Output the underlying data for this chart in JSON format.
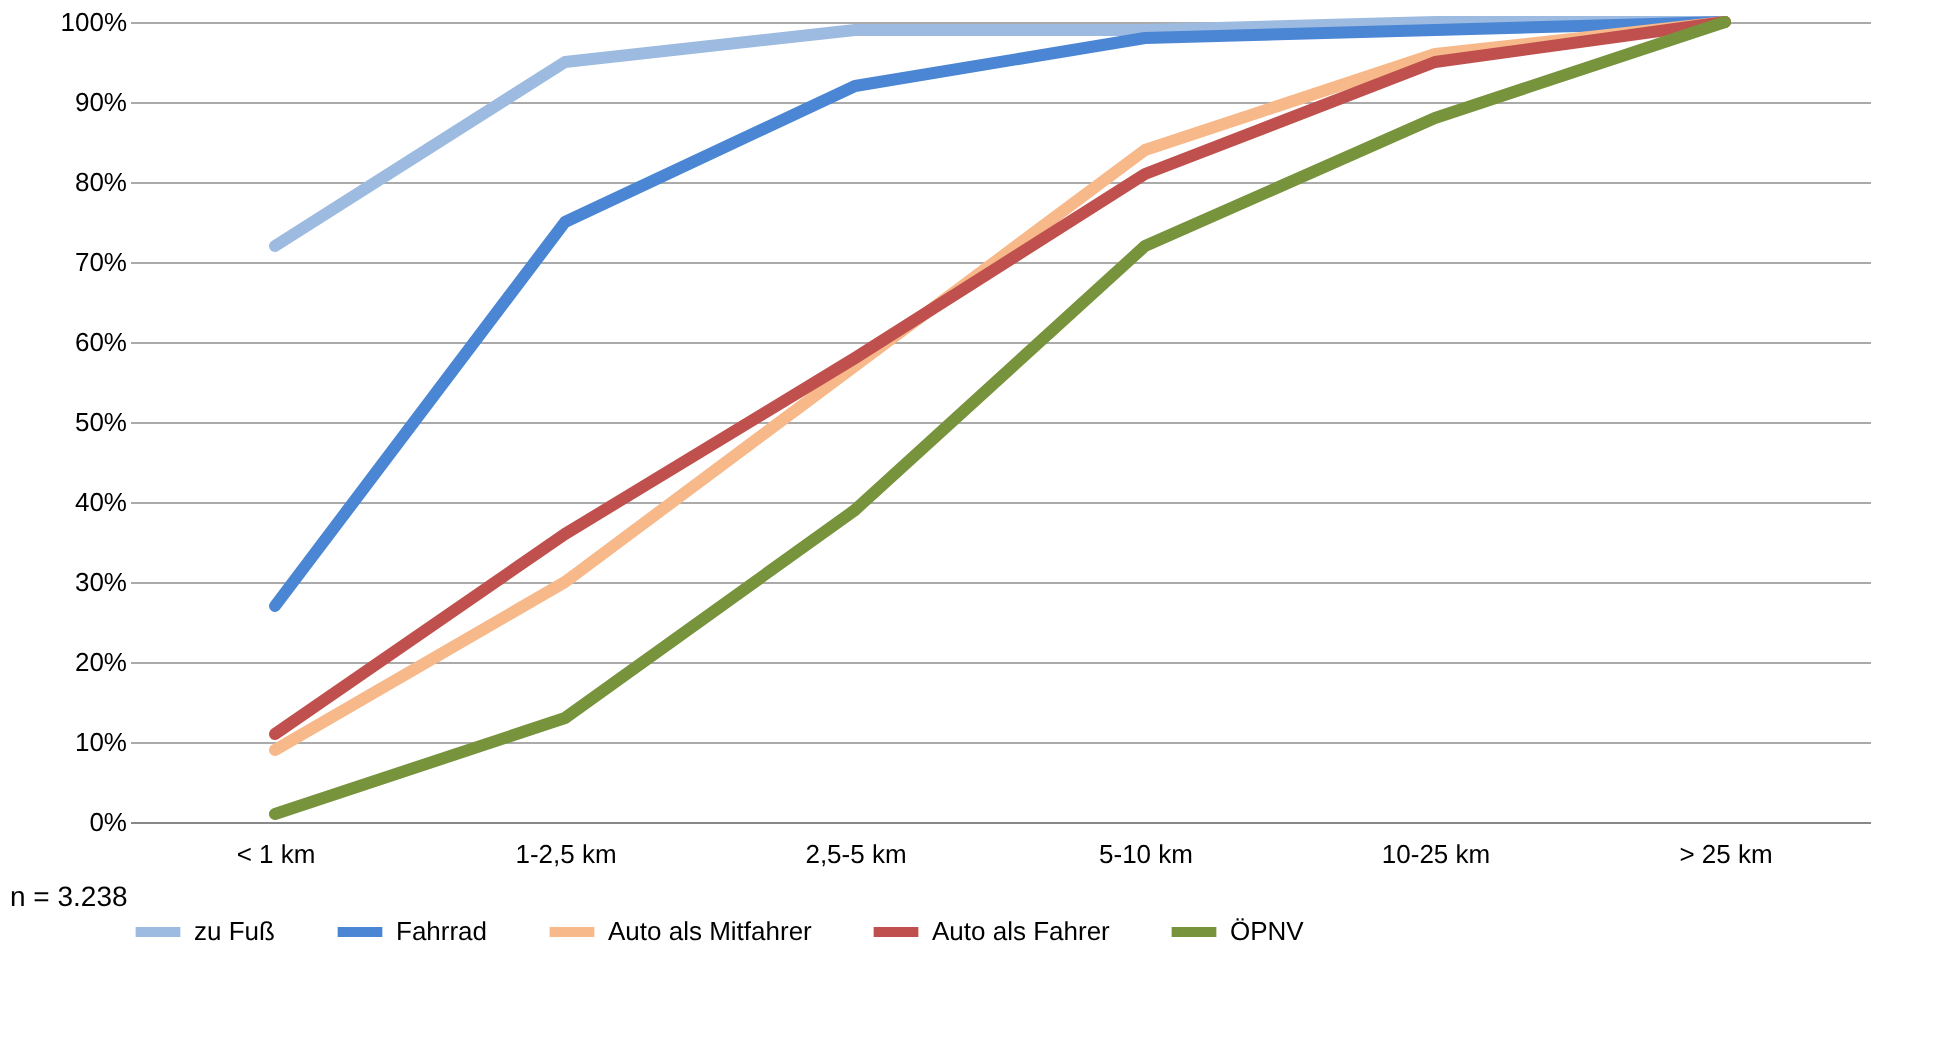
{
  "chart_data": {
    "type": "line",
    "categories": [
      "< 1 km",
      "1-2,5 km",
      "2,5-5 km",
      "5-10 km",
      "10-25 km",
      "> 25 km"
    ],
    "series": [
      {
        "name": "zu Fuß",
        "color": "#9dbbe0",
        "values": [
          72,
          95,
          99,
          99,
          100,
          100
        ]
      },
      {
        "name": "Fahrrad",
        "color": "#4a86d4",
        "values": [
          27,
          75,
          92,
          98,
          99,
          100
        ]
      },
      {
        "name": "Auto als Mitfahrer",
        "color": "#f7b98a",
        "values": [
          9,
          30,
          57,
          84,
          96,
          100
        ]
      },
      {
        "name": "Auto als Fahrer",
        "color": "#c0504d",
        "values": [
          11,
          36,
          58,
          81,
          95,
          100
        ]
      },
      {
        "name": "ÖPNV",
        "color": "#77933c",
        "values": [
          1,
          13,
          39,
          72,
          88,
          100
        ]
      }
    ],
    "ylim": [
      0,
      100
    ],
    "yticks": [
      {
        "value": 0,
        "label": "0%"
      },
      {
        "value": 10,
        "label": "10%"
      },
      {
        "value": 20,
        "label": "20%"
      },
      {
        "value": 30,
        "label": "30%"
      },
      {
        "value": 40,
        "label": "40%"
      },
      {
        "value": 50,
        "label": "50%"
      },
      {
        "value": 60,
        "label": "60%"
      },
      {
        "value": 70,
        "label": "70%"
      },
      {
        "value": 80,
        "label": "80%"
      },
      {
        "value": 90,
        "label": "90%"
      },
      {
        "value": 100,
        "label": "100%"
      }
    ],
    "grid": "y",
    "legend": "bottom",
    "marker": "none",
    "line_style": "solid",
    "annotations": [
      "n = 3.238"
    ]
  }
}
